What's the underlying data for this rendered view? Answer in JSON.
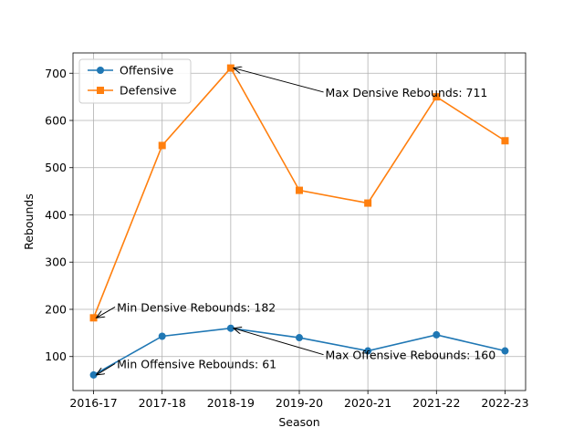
{
  "chart_data": {
    "type": "line",
    "categories": [
      "2016-17",
      "2017-18",
      "2018-19",
      "2019-20",
      "2020-21",
      "2021-22",
      "2022-23"
    ],
    "series": [
      {
        "name": "Offensive",
        "values": [
          61,
          143,
          160,
          140,
          112,
          146,
          112
        ],
        "color": "#1f77b4",
        "marker": "circle"
      },
      {
        "name": "Defensive",
        "values": [
          182,
          547,
          711,
          452,
          425,
          650,
          557
        ],
        "color": "#ff7f0e",
        "marker": "square"
      }
    ],
    "xlabel": "Season",
    "ylabel": "Rebounds",
    "ylim": [
      28,
      743
    ],
    "yticks": [
      100,
      200,
      300,
      400,
      500,
      600,
      700
    ],
    "grid": true,
    "legend": "top-left",
    "annotations": [
      {
        "text": "Max Densive Rebounds: 711",
        "series": 1,
        "index": 2,
        "text_x": 3.38,
        "text_y": 660
      },
      {
        "text": "Min Densive Rebounds: 182",
        "series": 1,
        "index": 0,
        "text_x": 0.34,
        "text_y": 205
      },
      {
        "text": "Max Offensive Rebounds: 160",
        "series": 0,
        "index": 2,
        "text_x": 3.38,
        "text_y": 104
      },
      {
        "text": "Min Offensive Rebounds: 61",
        "series": 0,
        "index": 0,
        "text_x": 0.34,
        "text_y": 85
      }
    ]
  }
}
